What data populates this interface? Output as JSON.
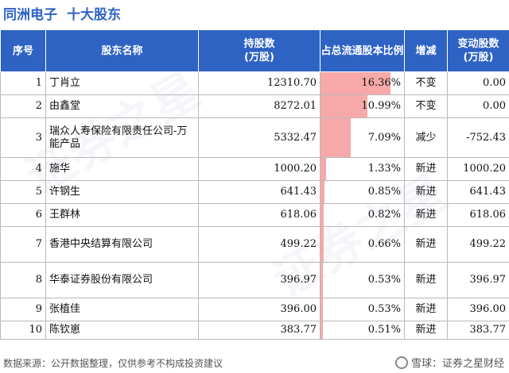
{
  "title": {
    "company": "同洲电子",
    "subtitle": "十大股东"
  },
  "headers": {
    "index": "序号",
    "name": "股东名称",
    "shares": "持股数\n(万股)",
    "ratio": "占总流通股本比例",
    "change": "增减",
    "change_shares": "变动股数\n(万股)"
  },
  "rows": [
    {
      "index": "1",
      "name": "丁肖立",
      "shares": "12310.70",
      "ratio": "16.36%",
      "ratio_value": 16.36,
      "change": "不变",
      "change_type": "same",
      "change_shares": "0.00"
    },
    {
      "index": "2",
      "name": "由鑫堂",
      "shares": "8272.01",
      "ratio": "10.99%",
      "ratio_value": 10.99,
      "change": "不变",
      "change_type": "same",
      "change_shares": "0.00"
    },
    {
      "index": "3",
      "name": "瑞众人寿保险有限责任公司-万能产品",
      "shares": "5332.47",
      "ratio": "7.09%",
      "ratio_value": 7.09,
      "change": "减少",
      "change_type": "down",
      "change_shares": "-752.43"
    },
    {
      "index": "4",
      "name": "施华",
      "shares": "1000.20",
      "ratio": "1.33%",
      "ratio_value": 1.33,
      "change": "新进",
      "change_type": "new",
      "change_shares": "1000.20"
    },
    {
      "index": "5",
      "name": "许钢生",
      "shares": "641.43",
      "ratio": "0.85%",
      "ratio_value": 0.85,
      "change": "新进",
      "change_type": "new",
      "change_shares": "641.43"
    },
    {
      "index": "6",
      "name": "王群林",
      "shares": "618.06",
      "ratio": "0.82%",
      "ratio_value": 0.82,
      "change": "新进",
      "change_type": "new",
      "change_shares": "618.06"
    },
    {
      "index": "7",
      "name": "香港中央结算有限公司",
      "shares": "499.22",
      "ratio": "0.66%",
      "ratio_value": 0.66,
      "change": "新进",
      "change_type": "new",
      "change_shares": "499.22"
    },
    {
      "index": "8",
      "name": "华泰证券股份有限公司",
      "shares": "396.97",
      "ratio": "0.53%",
      "ratio_value": 0.53,
      "change": "新进",
      "change_type": "new",
      "change_shares": "396.97"
    },
    {
      "index": "9",
      "name": "张植佳",
      "shares": "396.00",
      "ratio": "0.53%",
      "ratio_value": 0.53,
      "change": "新进",
      "change_type": "new",
      "change_shares": "396.00"
    },
    {
      "index": "10",
      "name": "陈钦崽",
      "shares": "383.77",
      "ratio": "0.51%",
      "ratio_value": 0.51,
      "change": "新进",
      "change_type": "new",
      "change_shares": "383.77"
    }
  ],
  "footer": "数据来源：公开数据整理，仅供参考不构成投资建议",
  "brand": "雪球：证券之星财经",
  "watermark": "证券之星",
  "colors": {
    "header_bg": "#2e63c4",
    "bar": "#f7a9a9",
    "increase": "#e02020",
    "decrease": "#2a9a3a"
  }
}
